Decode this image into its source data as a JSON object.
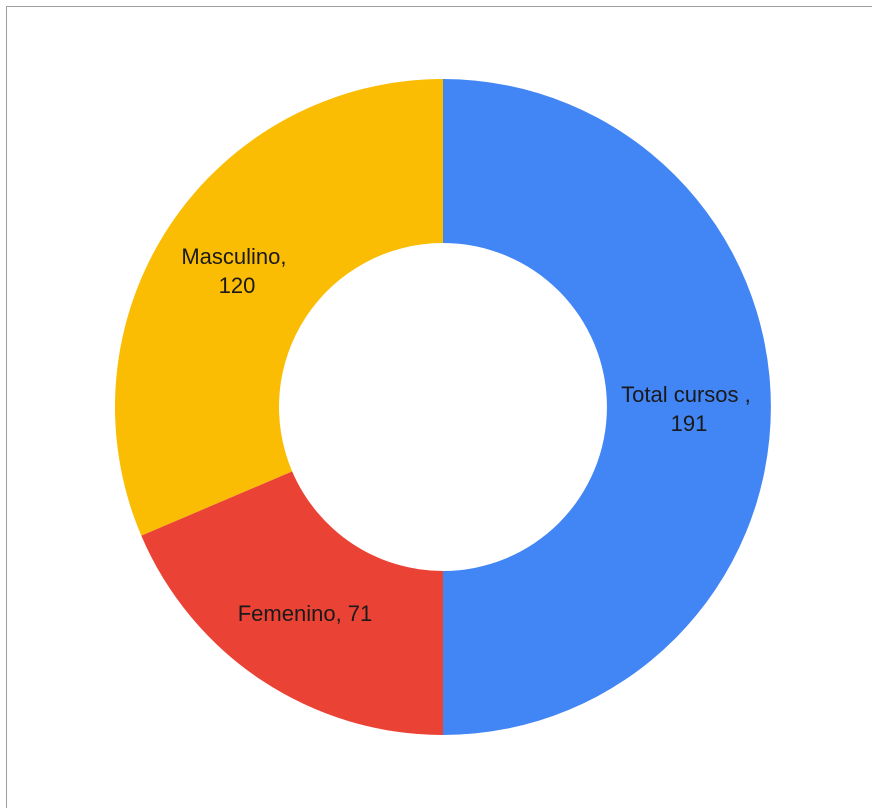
{
  "chart_data": {
    "type": "pie",
    "donut": true,
    "categories": [
      "Total cursos",
      "Femenino",
      "Masculino"
    ],
    "values": [
      191,
      71,
      120
    ],
    "colors": [
      "#4285F4",
      "#EA4335",
      "#FBBC04"
    ],
    "labels": [
      {
        "line1": "Total cursos ,",
        "line2": "191"
      },
      {
        "line1": "Femenino, 71",
        "line2": ""
      },
      {
        "line1": "Masculino,",
        "line2": "120"
      }
    ],
    "title": "",
    "legend": "none"
  }
}
